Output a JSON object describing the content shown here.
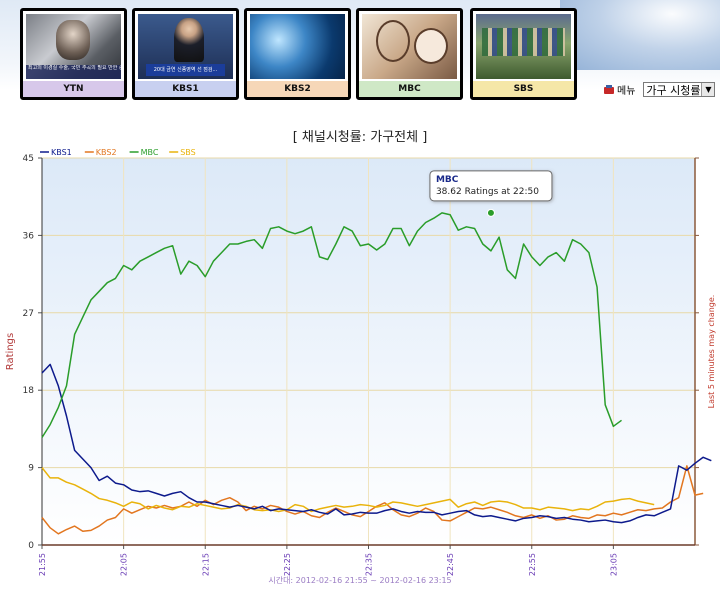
{
  "channels": [
    {
      "label": "YTN",
      "color": "#8a44b8"
    },
    {
      "label": "KBS1",
      "color": "#2233aa"
    },
    {
      "label": "KBS2",
      "color": "#e88a2a"
    },
    {
      "label": "MBC",
      "color": "#3aa33a"
    },
    {
      "label": "SBS",
      "color": "#e6a600"
    }
  ],
  "thumb_text": {
    "ytn_caption": "최고의 이경실 수술, 국민 추곡의 필요 만한 중요 지원",
    "kbs1_caption": "20대 금연 신종영역 선 점검..."
  },
  "menu": {
    "label": "메뉴",
    "icon": "menu-icon"
  },
  "selector": {
    "value": "가구 시청률"
  },
  "chart_data": {
    "type": "line",
    "title": "[ 채널시청률: 가구전체 ]",
    "ylabel": "Ratings",
    "right_label": "Last 5 minutes may change.",
    "footer": "시간대: 2012-02-16 21:55 ~ 2012-02-16 23:15",
    "ylim": [
      0,
      45
    ],
    "yticks": [
      0,
      9,
      18,
      27,
      36,
      45
    ],
    "xticks": [
      "21:55",
      "22:05",
      "22:15",
      "22:25",
      "22:35",
      "22:45",
      "22:55",
      "23:05"
    ],
    "x_start": "21:55",
    "x_end": "23:15",
    "grid": true,
    "legend_position": "top-left",
    "tooltip": {
      "series": "MBC",
      "text": "38.62 Ratings at 22:50",
      "time": "22:50",
      "value": 38.62
    },
    "series": [
      {
        "name": "KBS1",
        "color": "#0d1a8c",
        "values": [
          20,
          21,
          18.5,
          15,
          11,
          10,
          9,
          7.5,
          8,
          7.2,
          7,
          6.4,
          6.2,
          6.3,
          6,
          5.7,
          6,
          6.2,
          5.5,
          5,
          5,
          4.8,
          4.6,
          4.4,
          4.6,
          4.4,
          4.2,
          4.5,
          4,
          4.2,
          4.1,
          4,
          3.9,
          4.1,
          3.8,
          3.6,
          4.2,
          3.5,
          3.6,
          3.8,
          3.7,
          3.7,
          4,
          4.2,
          3.9,
          3.7,
          3.9,
          3.8,
          3.8,
          3.5,
          3.7,
          3.9,
          4,
          3.5,
          3.3,
          3.4,
          3.2,
          3,
          2.8,
          3.1,
          3.2,
          3.4,
          3.3,
          3.1,
          3.2,
          3,
          2.9,
          2.7,
          2.8,
          2.9,
          2.7,
          2.6,
          2.8,
          3.2,
          3.5,
          3.4,
          3.8,
          4.2,
          9.2,
          8.7,
          9.5,
          10.2,
          9.8
        ]
      },
      {
        "name": "KBS2",
        "color": "#e2761f",
        "values": [
          3.2,
          2,
          1.3,
          1.8,
          2.2,
          1.6,
          1.7,
          2.2,
          2.9,
          3.2,
          4.2,
          3.7,
          4.1,
          4.5,
          4.3,
          4.6,
          4.3,
          4.5,
          5,
          4.5,
          5.2,
          4.7,
          5.2,
          5.5,
          5,
          4,
          4.5,
          4.2,
          4.6,
          4.4,
          3.9,
          3.6,
          3.9,
          3.4,
          3.2,
          3.8,
          4.3,
          3.9,
          3.5,
          3.3,
          3.9,
          4.5,
          4.9,
          4.1,
          3.5,
          3.3,
          3.7,
          4.3,
          3.9,
          2.9,
          2.8,
          3.3,
          3.8,
          4.3,
          4.2,
          4.4,
          4.1,
          3.8,
          3.4,
          3.2,
          3.5,
          3.1,
          3.4,
          2.9,
          3,
          3.4,
          3.2,
          3.1,
          3.5,
          3.4,
          3.7,
          3.5,
          3.8,
          4.1,
          4,
          4.2,
          4.3,
          5,
          5.5,
          9.2,
          5.8,
          6
        ]
      },
      {
        "name": "MBC",
        "color": "#2a9d2a",
        "values": [
          12.5,
          14,
          16,
          18.5,
          24.5,
          26.5,
          28.5,
          29.5,
          30.5,
          31,
          32.5,
          32,
          33,
          33.5,
          34,
          34.5,
          34.8,
          31.5,
          33,
          32.5,
          31.2,
          33,
          34,
          35,
          35,
          35.3,
          35.5,
          34.5,
          36.8,
          37,
          36.5,
          36.2,
          36.5,
          37,
          33.5,
          33.2,
          35,
          37,
          36.5,
          34.8,
          35,
          34.3,
          35,
          36.8,
          36.8,
          34.8,
          36.5,
          37.5,
          38,
          38.62,
          38.4,
          36.6,
          37,
          36.8,
          35,
          34.2,
          35.8,
          32,
          31,
          35,
          33.5,
          32.5,
          33.5,
          34,
          33,
          35.5,
          35,
          34,
          30,
          16.3,
          13.8,
          14.5
        ]
      },
      {
        "name": "SBS",
        "color": "#e9b30c",
        "values": [
          9,
          7.8,
          7.8,
          7.3,
          7,
          6.5,
          6,
          5.4,
          5.2,
          4.9,
          4.5,
          5,
          4.8,
          4.2,
          4.6,
          4.3,
          4.1,
          4.5,
          4.4,
          4.8,
          4.6,
          4.4,
          4.2,
          4.3,
          4.7,
          4.5,
          4.1,
          4,
          4.1,
          3.9,
          4.1,
          4.7,
          4.5,
          3.9,
          4.2,
          4.4,
          4.6,
          4.4,
          4.5,
          4.7,
          4.6,
          4.4,
          4.6,
          5,
          4.9,
          4.7,
          4.5,
          4.7,
          4.9,
          5.1,
          5.3,
          4.4,
          4.8,
          5,
          4.6,
          5,
          5.1,
          5,
          4.7,
          4.3,
          4.3,
          4.1,
          4.4,
          4.3,
          4.2,
          4,
          4.2,
          4.1,
          4.5,
          5,
          5.1,
          5.3,
          5.4,
          5.1,
          4.9,
          4.7
        ]
      }
    ]
  }
}
